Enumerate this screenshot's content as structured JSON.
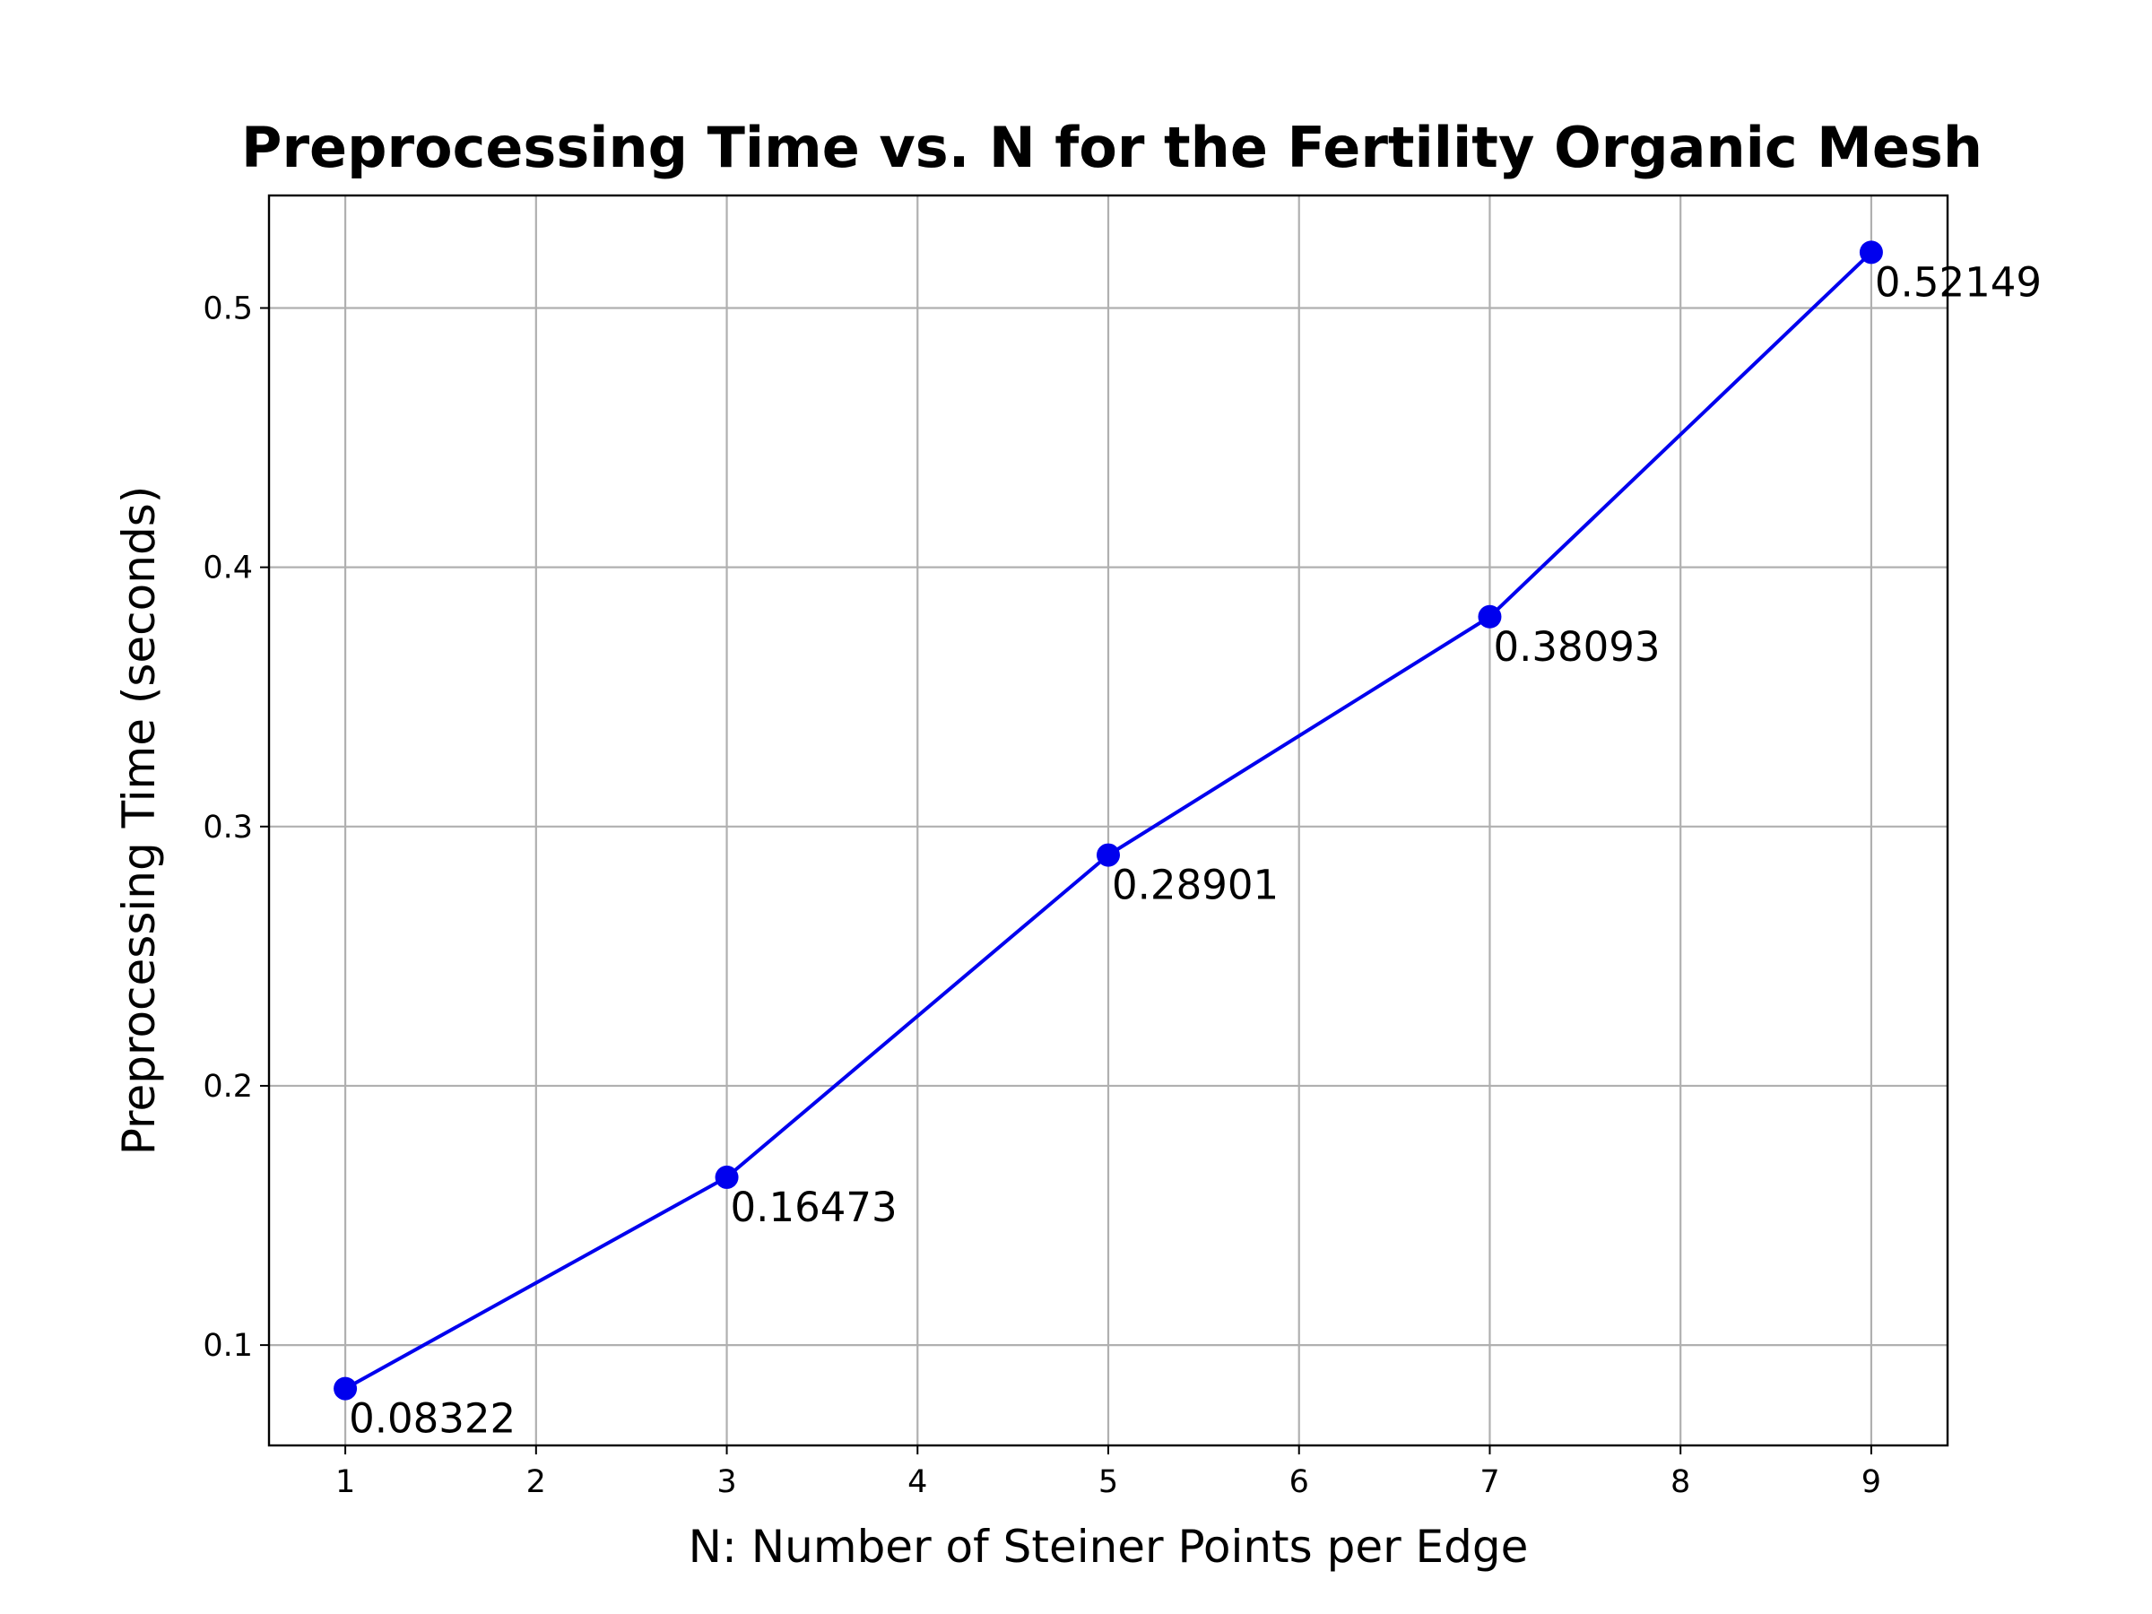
{
  "chart_data": {
    "type": "line",
    "title": "Preprocessing Time vs. N for the Fertility Organic Mesh",
    "xlabel": "N: Number of Steiner Points per Edge",
    "ylabel": "Preprocessing Time (seconds)",
    "x": [
      1,
      3,
      5,
      7,
      9
    ],
    "series": [
      {
        "values": [
          0.08322,
          0.16473,
          0.28901,
          0.38093,
          0.52149
        ],
        "labels": [
          "0.08322",
          "0.16473",
          "0.28901",
          "0.38093",
          "0.52149"
        ],
        "color": "#0000ee",
        "marker": "circle"
      }
    ],
    "xlim": [
      0.6,
      9.4
    ],
    "ylim": [
      0.0613,
      0.5434
    ],
    "xticks": [
      1,
      2,
      3,
      4,
      5,
      6,
      7,
      8,
      9
    ],
    "xtick_labels": [
      "1",
      "2",
      "3",
      "4",
      "5",
      "6",
      "7",
      "8",
      "9"
    ],
    "yticks": [
      0.1,
      0.2,
      0.3,
      0.4,
      0.5
    ],
    "ytick_labels": [
      "0.1",
      "0.2",
      "0.3",
      "0.4",
      "0.5"
    ],
    "grid": true,
    "legend": false
  }
}
